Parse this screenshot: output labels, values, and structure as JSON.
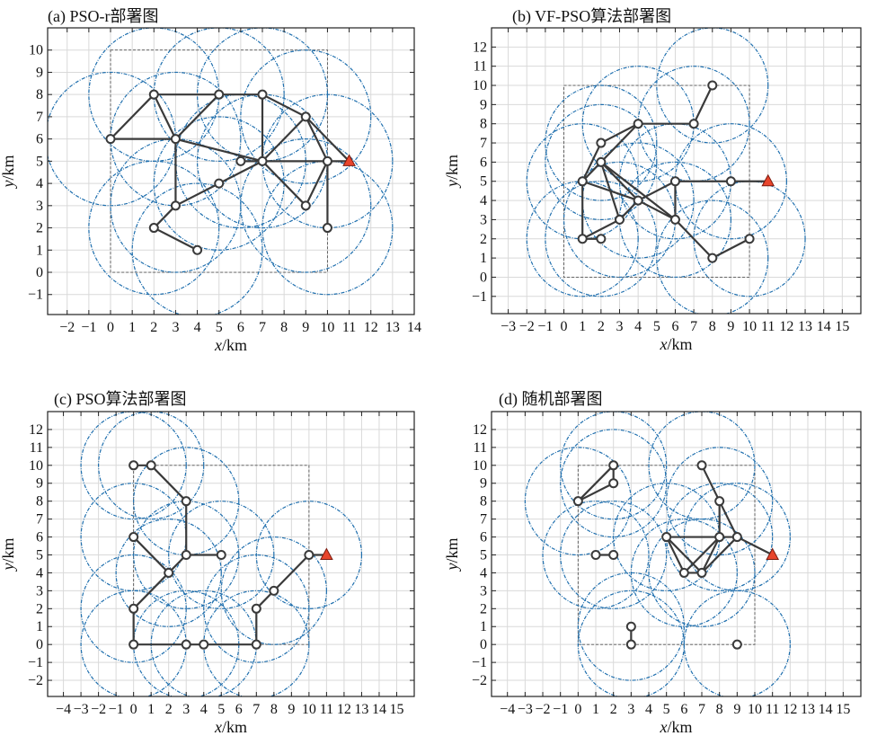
{
  "panels": [
    {
      "title": "(a) PSO-r部署图",
      "xlabel_italic": "x",
      "xlabel_unit": "/km",
      "ylabel_italic": "y",
      "ylabel_unit": "/km",
      "xlim": [
        -2.9,
        14
      ],
      "ylim": [
        -1.9,
        11
      ],
      "xticks": [
        -2,
        -1,
        0,
        1,
        2,
        3,
        4,
        5,
        6,
        7,
        8,
        9,
        10,
        11,
        12,
        13,
        14
      ],
      "yticks": [
        -1,
        0,
        1,
        2,
        3,
        4,
        5,
        6,
        7,
        8,
        9,
        10
      ],
      "region": [
        0,
        0,
        10,
        10
      ],
      "radius": 3,
      "nodes": [
        [
          0,
          6
        ],
        [
          2,
          8
        ],
        [
          5,
          8
        ],
        [
          7,
          8
        ],
        [
          3,
          6
        ],
        [
          6,
          5
        ],
        [
          7,
          5
        ],
        [
          9,
          7
        ],
        [
          10,
          5
        ],
        [
          5,
          4
        ],
        [
          9,
          3
        ],
        [
          10,
          2
        ],
        [
          3,
          3
        ],
        [
          2,
          2
        ],
        [
          4,
          1
        ]
      ],
      "sink": [
        11,
        5
      ],
      "edges": [
        [
          [
            0,
            6
          ],
          [
            2,
            8
          ]
        ],
        [
          [
            2,
            8
          ],
          [
            5,
            8
          ]
        ],
        [
          [
            5,
            8
          ],
          [
            7,
            8
          ]
        ],
        [
          [
            0,
            6
          ],
          [
            3,
            6
          ]
        ],
        [
          [
            2,
            8
          ],
          [
            3,
            6
          ]
        ],
        [
          [
            3,
            6
          ],
          [
            5,
            8
          ]
        ],
        [
          [
            7,
            8
          ],
          [
            7,
            5
          ]
        ],
        [
          [
            3,
            6
          ],
          [
            7,
            5
          ]
        ],
        [
          [
            7,
            8
          ],
          [
            9,
            7
          ]
        ],
        [
          [
            9,
            7
          ],
          [
            11,
            5
          ]
        ],
        [
          [
            7,
            5
          ],
          [
            10,
            5
          ]
        ],
        [
          [
            10,
            5
          ],
          [
            11,
            5
          ]
        ],
        [
          [
            7,
            5
          ],
          [
            9,
            7
          ]
        ],
        [
          [
            9,
            7
          ],
          [
            10,
            5
          ]
        ],
        [
          [
            7,
            5
          ],
          [
            5,
            4
          ]
        ],
        [
          [
            5,
            4
          ],
          [
            3,
            3
          ]
        ],
        [
          [
            3,
            6
          ],
          [
            3,
            3
          ]
        ],
        [
          [
            3,
            3
          ],
          [
            2,
            2
          ]
        ],
        [
          [
            2,
            2
          ],
          [
            4,
            1
          ]
        ],
        [
          [
            7,
            5
          ],
          [
            9,
            3
          ]
        ],
        [
          [
            9,
            3
          ],
          [
            10,
            5
          ]
        ],
        [
          [
            10,
            5
          ],
          [
            10,
            2
          ]
        ],
        [
          [
            6,
            5
          ],
          [
            7,
            5
          ]
        ]
      ]
    },
    {
      "title": "(b) VF-PSO算法部署图",
      "xlabel_italic": "x",
      "xlabel_unit": "/km",
      "ylabel_italic": "y",
      "ylabel_unit": "/km",
      "xlim": [
        -3.9,
        16
      ],
      "ylim": [
        -1.9,
        13
      ],
      "xticks": [
        -3,
        -2,
        -1,
        0,
        1,
        2,
        3,
        4,
        5,
        6,
        7,
        8,
        9,
        10,
        11,
        12,
        13,
        14,
        15
      ],
      "yticks": [
        -1,
        0,
        1,
        2,
        3,
        4,
        5,
        6,
        7,
        8,
        9,
        10,
        11,
        12
      ],
      "region": [
        0,
        0,
        10,
        10
      ],
      "radius": 3,
      "nodes": [
        [
          8,
          10
        ],
        [
          7,
          8
        ],
        [
          4,
          8
        ],
        [
          2,
          7
        ],
        [
          2,
          6
        ],
        [
          1,
          5
        ],
        [
          6,
          5
        ],
        [
          9,
          5
        ],
        [
          4,
          4
        ],
        [
          3,
          3
        ],
        [
          6,
          3
        ],
        [
          1,
          2
        ],
        [
          2,
          2
        ],
        [
          10,
          2
        ],
        [
          8,
          1
        ]
      ],
      "sink": [
        11,
        5
      ],
      "edges": [
        [
          [
            8,
            10
          ],
          [
            7,
            8
          ]
        ],
        [
          [
            7,
            8
          ],
          [
            4,
            8
          ]
        ],
        [
          [
            4,
            8
          ],
          [
            2,
            6
          ]
        ],
        [
          [
            2,
            7
          ],
          [
            1,
            5
          ]
        ],
        [
          [
            2,
            7
          ],
          [
            4,
            8
          ]
        ],
        [
          [
            1,
            5
          ],
          [
            2,
            6
          ]
        ],
        [
          [
            1,
            5
          ],
          [
            4,
            4
          ]
        ],
        [
          [
            2,
            6
          ],
          [
            4,
            4
          ]
        ],
        [
          [
            1,
            5
          ],
          [
            1,
            2
          ]
        ],
        [
          [
            1,
            2
          ],
          [
            3,
            3
          ]
        ],
        [
          [
            3,
            3
          ],
          [
            4,
            4
          ]
        ],
        [
          [
            4,
            4
          ],
          [
            6,
            3
          ]
        ],
        [
          [
            4,
            4
          ],
          [
            6,
            5
          ]
        ],
        [
          [
            6,
            5
          ],
          [
            6,
            3
          ]
        ],
        [
          [
            6,
            5
          ],
          [
            9,
            5
          ]
        ],
        [
          [
            9,
            5
          ],
          [
            11,
            5
          ]
        ],
        [
          [
            6,
            3
          ],
          [
            8,
            1
          ]
        ],
        [
          [
            8,
            1
          ],
          [
            10,
            2
          ]
        ],
        [
          [
            1,
            2
          ],
          [
            2,
            2
          ]
        ],
        [
          [
            2,
            6
          ],
          [
            3,
            3
          ]
        ],
        [
          [
            2,
            6
          ],
          [
            6,
            3
          ]
        ]
      ]
    },
    {
      "title": "(c) PSO算法部署图",
      "xlabel_italic": "x",
      "xlabel_unit": "/km",
      "ylabel_italic": "y",
      "ylabel_unit": "/km",
      "xlim": [
        -4.9,
        16
      ],
      "ylim": [
        -2.9,
        13
      ],
      "xticks": [
        -4,
        -3,
        -2,
        -1,
        0,
        1,
        2,
        3,
        4,
        5,
        6,
        7,
        8,
        9,
        10,
        11,
        12,
        13,
        14,
        15
      ],
      "yticks": [
        -2,
        -1,
        0,
        1,
        2,
        3,
        4,
        5,
        6,
        7,
        8,
        9,
        10,
        11,
        12
      ],
      "region": [
        0,
        0,
        10,
        10
      ],
      "radius": 3,
      "nodes": [
        [
          0,
          10
        ],
        [
          1,
          10
        ],
        [
          3,
          8
        ],
        [
          0,
          6
        ],
        [
          3,
          5
        ],
        [
          5,
          5
        ],
        [
          2,
          4
        ],
        [
          0,
          2
        ],
        [
          0,
          0
        ],
        [
          3,
          0
        ],
        [
          4,
          0
        ],
        [
          7,
          0
        ],
        [
          7,
          2
        ],
        [
          8,
          3
        ],
        [
          10,
          5
        ]
      ],
      "sink": [
        11,
        5
      ],
      "edges": [
        [
          [
            0,
            10
          ],
          [
            1,
            10
          ]
        ],
        [
          [
            1,
            10
          ],
          [
            3,
            8
          ]
        ],
        [
          [
            3,
            8
          ],
          [
            3,
            5
          ]
        ],
        [
          [
            3,
            5
          ],
          [
            5,
            5
          ]
        ],
        [
          [
            0,
            6
          ],
          [
            2,
            4
          ]
        ],
        [
          [
            2,
            4
          ],
          [
            3,
            5
          ]
        ],
        [
          [
            2,
            4
          ],
          [
            0,
            2
          ]
        ],
        [
          [
            0,
            2
          ],
          [
            0,
            0
          ]
        ],
        [
          [
            0,
            0
          ],
          [
            7,
            0
          ]
        ],
        [
          [
            7,
            0
          ],
          [
            7,
            2
          ]
        ],
        [
          [
            7,
            2
          ],
          [
            8,
            3
          ]
        ],
        [
          [
            8,
            3
          ],
          [
            10,
            5
          ]
        ],
        [
          [
            10,
            5
          ],
          [
            11,
            5
          ]
        ]
      ]
    },
    {
      "title": "(d) 随机部署图",
      "xlabel_italic": "x",
      "xlabel_unit": "/km",
      "ylabel_italic": "y",
      "ylabel_unit": "/km",
      "xlim": [
        -4.9,
        16
      ],
      "ylim": [
        -2.9,
        13
      ],
      "xticks": [
        -4,
        -3,
        -2,
        -1,
        0,
        1,
        2,
        3,
        4,
        5,
        6,
        7,
        8,
        9,
        10,
        11,
        12,
        13,
        14,
        15
      ],
      "yticks": [
        -2,
        -1,
        0,
        1,
        2,
        3,
        4,
        5,
        6,
        7,
        8,
        9,
        10,
        11,
        12
      ],
      "region": [
        0,
        0,
        10,
        10
      ],
      "radius": 3,
      "nodes": [
        [
          2,
          10
        ],
        [
          2,
          9
        ],
        [
          0,
          8
        ],
        [
          7,
          10
        ],
        [
          8,
          8
        ],
        [
          5,
          6
        ],
        [
          8,
          6
        ],
        [
          9,
          6
        ],
        [
          6,
          4
        ],
        [
          7,
          4
        ],
        [
          1,
          5
        ],
        [
          2,
          5
        ],
        [
          3,
          1
        ],
        [
          3,
          0
        ],
        [
          9,
          0
        ]
      ],
      "sink": [
        11,
        5
      ],
      "edges": [
        [
          [
            0,
            8
          ],
          [
            2,
            10
          ]
        ],
        [
          [
            0,
            8
          ],
          [
            2,
            9
          ]
        ],
        [
          [
            2,
            9
          ],
          [
            2,
            10
          ]
        ],
        [
          [
            7,
            10
          ],
          [
            8,
            8
          ]
        ],
        [
          [
            8,
            8
          ],
          [
            8,
            6
          ]
        ],
        [
          [
            8,
            8
          ],
          [
            9,
            6
          ]
        ],
        [
          [
            5,
            6
          ],
          [
            9,
            6
          ]
        ],
        [
          [
            5,
            6
          ],
          [
            6,
            4
          ]
        ],
        [
          [
            6,
            4
          ],
          [
            7,
            4
          ]
        ],
        [
          [
            7,
            4
          ],
          [
            8,
            6
          ]
        ],
        [
          [
            5,
            6
          ],
          [
            7,
            4
          ]
        ],
        [
          [
            6,
            4
          ],
          [
            8,
            6
          ]
        ],
        [
          [
            9,
            6
          ],
          [
            11,
            5
          ]
        ],
        [
          [
            7,
            4
          ],
          [
            9,
            6
          ]
        ],
        [
          [
            1,
            5
          ],
          [
            2,
            5
          ]
        ],
        [
          [
            3,
            1
          ],
          [
            3,
            0
          ]
        ]
      ]
    }
  ],
  "colors": {
    "grid": "#d9d9d9",
    "circle": "#1f6fae",
    "edge": "#3a3a3a",
    "node": "#3a3a3a",
    "sink": "#e8452c",
    "region": "#555555",
    "axes": "#222222"
  }
}
